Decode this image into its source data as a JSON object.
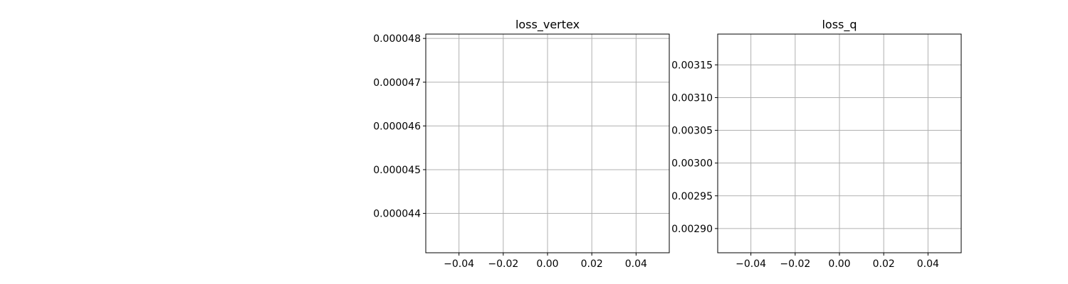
{
  "chart_data": [
    {
      "type": "line",
      "title": "loss_vertex",
      "xlabel": "",
      "ylabel": "",
      "xlim": [
        -0.055,
        0.055
      ],
      "ylim": [
        4.31e-05,
        4.81e-05
      ],
      "xticks": [
        -0.04,
        -0.02,
        0.0,
        0.02,
        0.04
      ],
      "xtick_labels": [
        "−0.04",
        "−0.02",
        "0.00",
        "0.02",
        "0.04"
      ],
      "yticks": [
        4.4e-05,
        4.5e-05,
        4.6e-05,
        4.7e-05,
        4.8e-05
      ],
      "ytick_labels": [
        "0.000044",
        "0.000045",
        "0.000046",
        "0.000047",
        "0.000048"
      ],
      "grid": true,
      "series": []
    },
    {
      "type": "line",
      "title": "loss_q",
      "xlabel": "",
      "ylabel": "",
      "xlim": [
        -0.055,
        0.055
      ],
      "ylim": [
        0.002863,
        0.003197
      ],
      "xticks": [
        -0.04,
        -0.02,
        0.0,
        0.02,
        0.04
      ],
      "xtick_labels": [
        "−0.04",
        "−0.02",
        "0.00",
        "0.02",
        "0.04"
      ],
      "yticks": [
        0.0029,
        0.00295,
        0.003,
        0.00305,
        0.0031,
        0.00315
      ],
      "ytick_labels": [
        "0.00290",
        "0.00295",
        "0.00300",
        "0.00305",
        "0.00310",
        "0.00315"
      ],
      "grid": true,
      "series": []
    }
  ],
  "colors": {
    "grid": "#b0b0b0",
    "axes": "#000000",
    "background": "#ffffff"
  }
}
